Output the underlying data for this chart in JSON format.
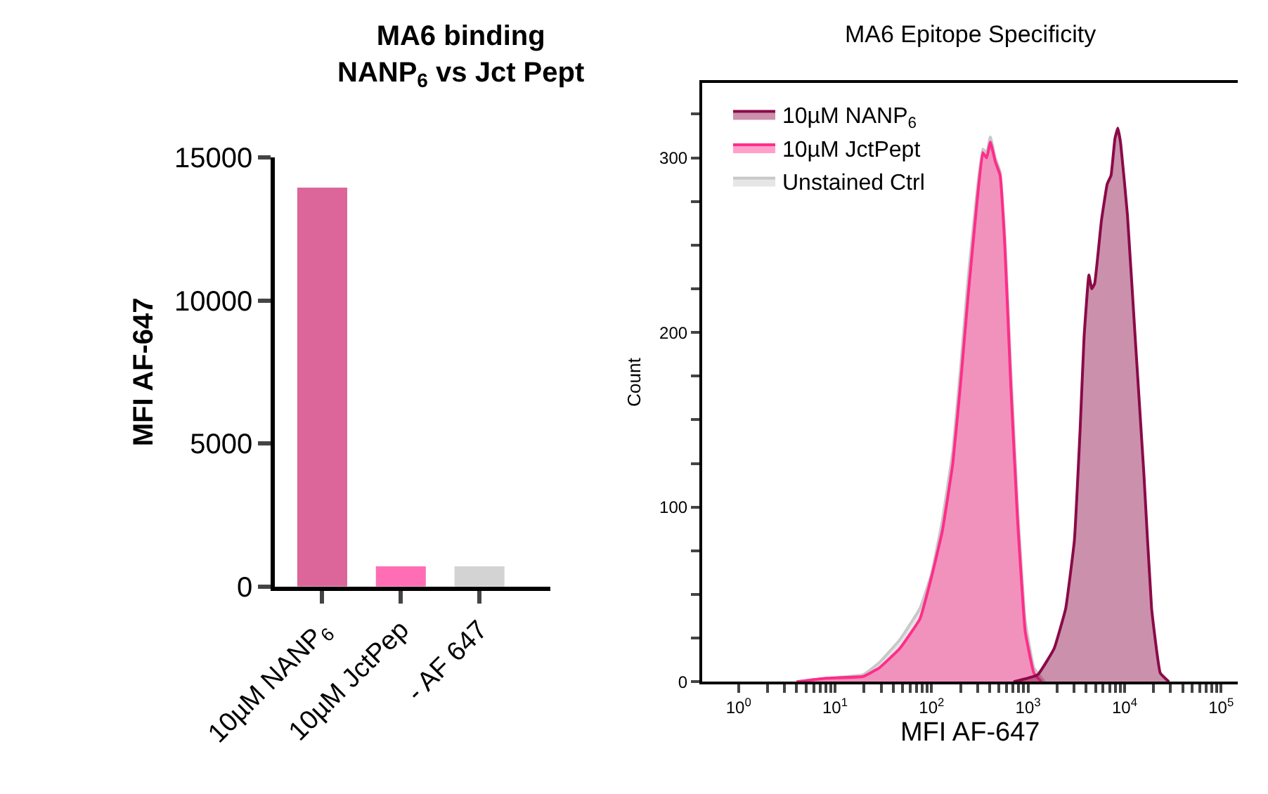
{
  "chart_data": [
    {
      "type": "bar",
      "title": "MA6 binding\nNANP$_{6}$ vs Jct Pept",
      "ylabel": "MFI AF-647",
      "categories": [
        "10µM NANP$_{6}$",
        "10µM JctPep",
        "- AF 647"
      ],
      "values": [
        13900,
        650,
        650
      ],
      "colors": [
        "#dc6699",
        "#ff6eb4",
        "#d3d3d3"
      ],
      "ylim": [
        0,
        15000
      ],
      "yticks": [
        0,
        5000,
        10000,
        15000
      ]
    },
    {
      "type": "area",
      "title": "MA6 Epitope Specificity",
      "xlabel": "MFI AF-647",
      "ylabel": "Count",
      "log": "x",
      "series": [
        {
          "name": "10µM NANP$_{6}$",
          "color": "#8b0a48",
          "x": [
            708,
            1259,
            1862,
            2455,
            3020,
            3467,
            3802,
            4266,
            4571,
            4898,
            5754,
            6607,
            7244,
            7943,
            8511,
            9120,
            10715,
            12882,
            15849,
            19055,
            23442,
            28840
          ],
          "values": [
            0,
            4,
            19,
            42,
            81,
            145,
            197,
            233,
            225,
            228,
            264,
            285,
            290,
            311,
            317,
            308,
            267,
            197,
            119,
            42,
            5,
            0
          ]
        },
        {
          "name": "10µM JctPept",
          "color": "#ff2d8a",
          "x": [
            4,
            8.1,
            19.5,
            28.8,
            46.8,
            75.9,
            100,
            129,
            166,
            200,
            240,
            295,
            339,
            372,
            407,
            457,
            513,
            575,
            661,
            776,
            933,
            1148,
            1380
          ],
          "values": [
            0,
            2,
            3,
            8,
            19,
            36,
            60,
            86,
            125,
            171,
            222,
            274,
            303,
            300,
            309,
            298,
            290,
            249,
            171,
            94,
            29,
            5,
            0
          ]
        },
        {
          "name": "Unstained Ctrl",
          "color": "#c8c8c8",
          "x": [
            4,
            8.1,
            19.5,
            28.8,
            46.8,
            75.9,
            100,
            129,
            166,
            200,
            240,
            295,
            339,
            372,
            407,
            457,
            513,
            575,
            661,
            776,
            933,
            1148,
            1480
          ],
          "values": [
            0,
            2,
            4,
            11,
            24,
            42,
            62,
            92,
            132,
            180,
            232,
            280,
            305,
            303,
            312,
            300,
            292,
            255,
            180,
            102,
            35,
            8,
            0
          ]
        }
      ],
      "xlim": [
        0.42,
        150000
      ],
      "xticks": [
        {
          "value": 1,
          "label": "10$^{0}$"
        },
        {
          "value": 2,
          "label": null
        },
        {
          "value": 3,
          "label": null
        },
        {
          "value": 4,
          "label": null
        },
        {
          "value": 5,
          "label": null
        },
        {
          "value": 6,
          "label": null
        },
        {
          "value": 7,
          "label": null
        },
        {
          "value": 8,
          "label": null
        },
        {
          "value": 9,
          "label": null
        },
        {
          "value": 10,
          "label": "10$^{1}$"
        },
        {
          "value": 20,
          "label": null
        },
        {
          "value": 30,
          "label": null
        },
        {
          "value": 40,
          "label": null
        },
        {
          "value": 50,
          "label": null
        },
        {
          "value": 60,
          "label": null
        },
        {
          "value": 70,
          "label": null
        },
        {
          "value": 80,
          "label": null
        },
        {
          "value": 90,
          "label": null
        },
        {
          "value": 100,
          "label": "10$^{2}$"
        },
        {
          "value": 200,
          "label": null
        },
        {
          "value": 300,
          "label": null
        },
        {
          "value": 400,
          "label": null
        },
        {
          "value": 500,
          "label": null
        },
        {
          "value": 600,
          "label": null
        },
        {
          "value": 700,
          "label": null
        },
        {
          "value": 800,
          "label": null
        },
        {
          "value": 900,
          "label": null
        },
        {
          "value": 1000,
          "label": "10$^{3}$"
        },
        {
          "value": 2000,
          "label": null
        },
        {
          "value": 3000,
          "label": null
        },
        {
          "value": 4000,
          "label": null
        },
        {
          "value": 5000,
          "label": null
        },
        {
          "value": 6000,
          "label": null
        },
        {
          "value": 7000,
          "label": null
        },
        {
          "value": 8000,
          "label": null
        },
        {
          "value": 9000,
          "label": null
        },
        {
          "value": 10000,
          "label": "10$^{4}$"
        },
        {
          "value": 20000,
          "label": null
        },
        {
          "value": 30000,
          "label": null
        },
        {
          "value": 40000,
          "label": null
        },
        {
          "value": 50000,
          "label": null
        },
        {
          "value": 60000,
          "label": null
        },
        {
          "value": 70000,
          "label": null
        },
        {
          "value": 80000,
          "label": null
        },
        {
          "value": 90000,
          "label": null
        },
        {
          "value": 100000,
          "label": "10$^{5}$"
        }
      ],
      "ylim": [
        0,
        343
      ],
      "yticks": [
        0,
        {
          "value": 25,
          "label": null
        },
        {
          "value": 50,
          "label": null
        },
        {
          "value": 75,
          "label": null
        },
        100,
        {
          "value": 125,
          "label": null
        },
        {
          "value": 150,
          "label": null
        },
        {
          "value": 175,
          "label": null
        },
        200,
        {
          "value": 225,
          "label": null
        },
        {
          "value": 250,
          "label": null
        },
        {
          "value": 275,
          "label": null
        },
        300,
        {
          "value": 325,
          "label": null
        }
      ],
      "legend": "top left"
    }
  ]
}
